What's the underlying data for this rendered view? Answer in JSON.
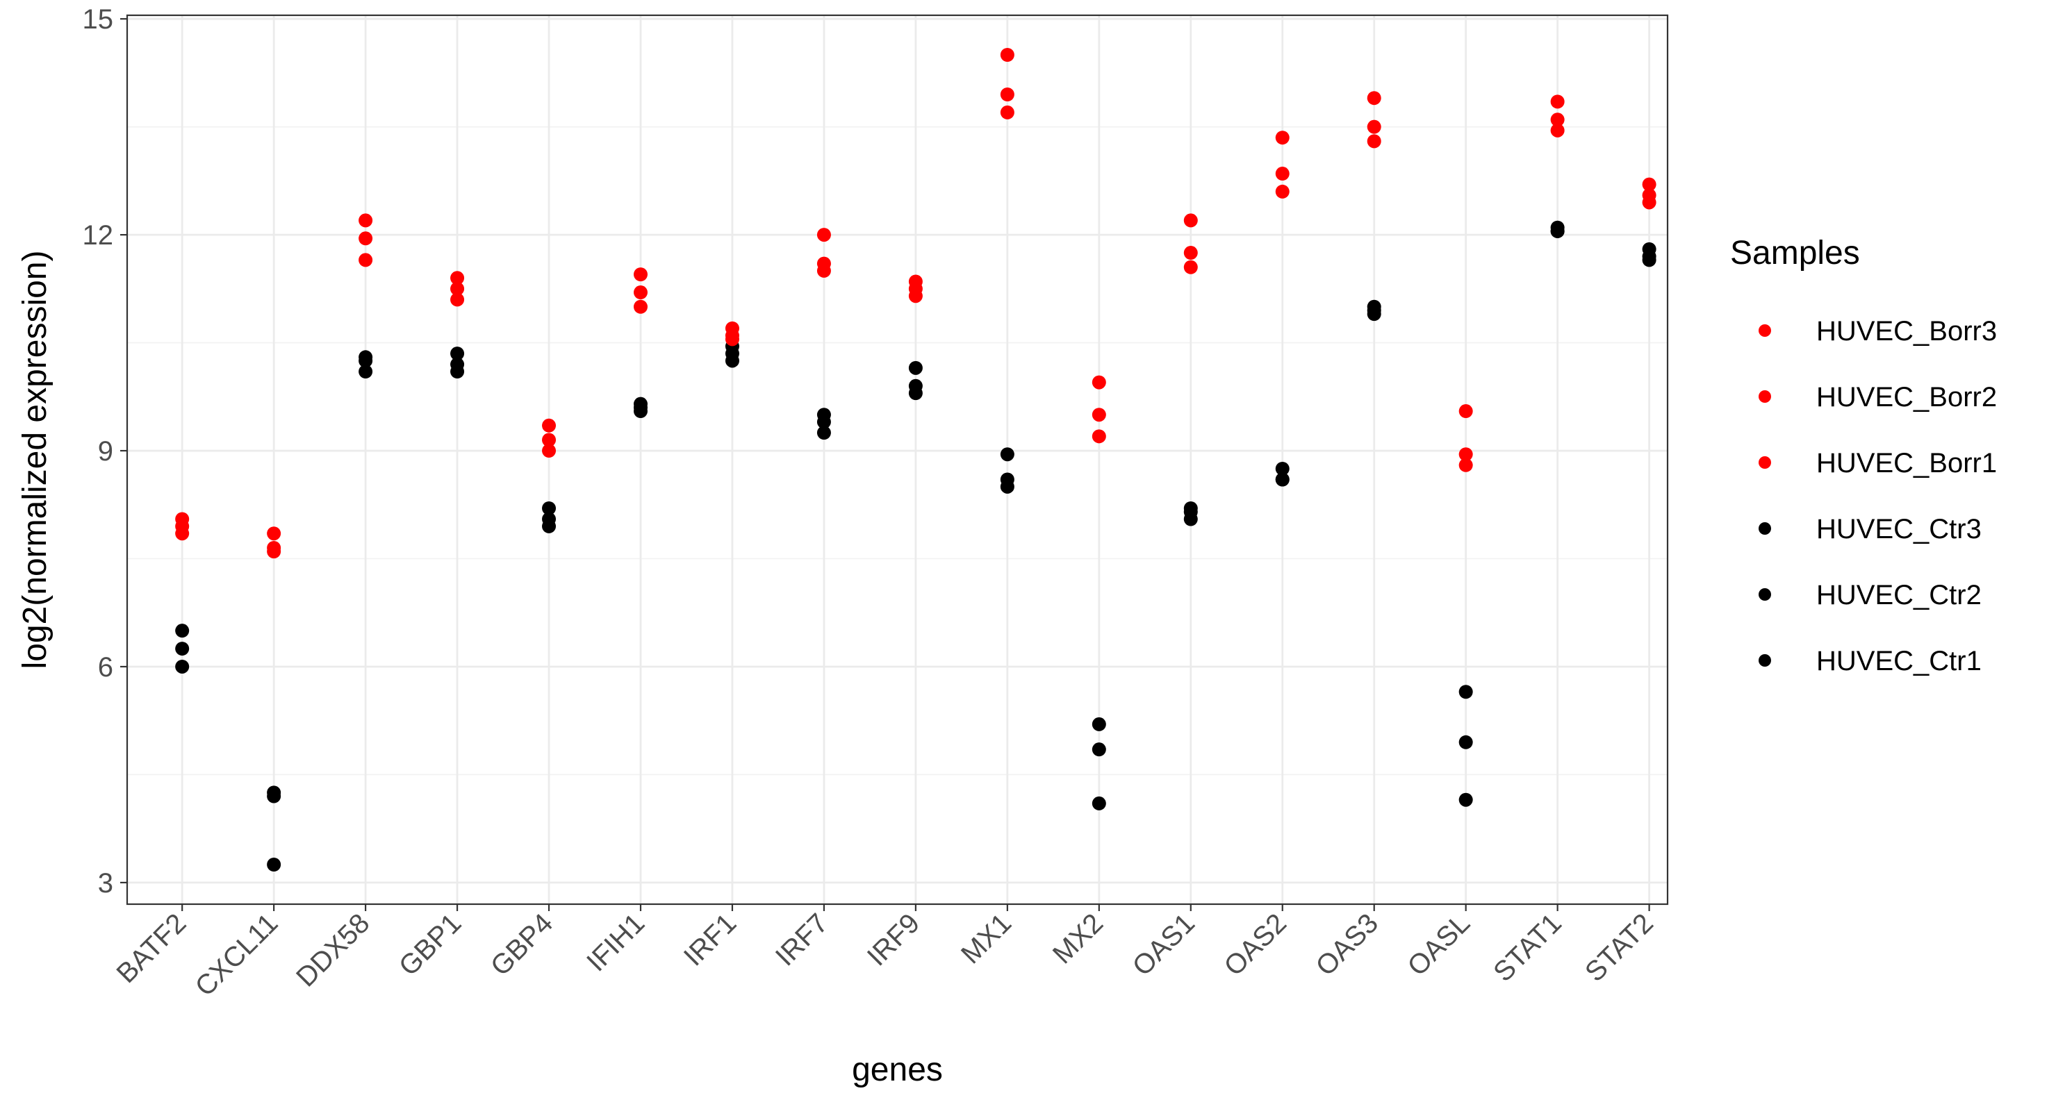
{
  "chart_data": {
    "type": "scatter",
    "title": "",
    "xlabel": "genes",
    "ylabel": "log2(normalized expression)",
    "ylim": [
      2.7,
      15.05
    ],
    "yticks": [
      3,
      6,
      9,
      12,
      15
    ],
    "grid": true,
    "categories": [
      "BATF2",
      "CXCL11",
      "DDX58",
      "GBP1",
      "GBP4",
      "IFIH1",
      "IRF1",
      "IRF7",
      "IRF9",
      "MX1",
      "MX2",
      "OAS1",
      "OAS2",
      "OAS3",
      "OASL",
      "STAT1",
      "STAT2"
    ],
    "legend": {
      "title": "Samples",
      "position": "right"
    },
    "series": [
      {
        "name": "HUVEC_Borr3",
        "color": "#ff0000",
        "values": [
          8.05,
          7.85,
          12.2,
          11.4,
          9.35,
          11.45,
          10.7,
          12.0,
          11.35,
          14.5,
          9.95,
          12.2,
          13.35,
          13.9,
          9.55,
          13.85,
          12.7
        ]
      },
      {
        "name": "HUVEC_Borr2",
        "color": "#ff0000",
        "values": [
          7.95,
          7.65,
          11.95,
          11.25,
          9.15,
          11.2,
          10.6,
          11.6,
          11.25,
          13.95,
          9.5,
          11.75,
          12.85,
          13.5,
          8.95,
          13.6,
          12.55
        ]
      },
      {
        "name": "HUVEC_Borr1",
        "color": "#ff0000",
        "values": [
          7.85,
          7.6,
          11.65,
          11.1,
          9.0,
          11.0,
          10.55,
          11.5,
          11.15,
          13.7,
          9.2,
          11.55,
          12.6,
          13.3,
          8.8,
          13.45,
          12.45
        ]
      },
      {
        "name": "HUVEC_Ctr3",
        "color": "#000000",
        "values": [
          6.5,
          4.25,
          10.3,
          10.35,
          8.2,
          9.65,
          10.45,
          9.5,
          10.15,
          8.95,
          5.2,
          8.2,
          8.75,
          11.0,
          5.65,
          12.1,
          11.8
        ]
      },
      {
        "name": "HUVEC_Ctr2",
        "color": "#000000",
        "values": [
          6.25,
          4.2,
          10.25,
          10.2,
          8.05,
          9.6,
          10.35,
          9.4,
          9.9,
          8.6,
          4.85,
          8.15,
          8.6,
          10.95,
          4.95,
          12.05,
          11.7
        ]
      },
      {
        "name": "HUVEC_Ctr1",
        "color": "#000000",
        "values": [
          6.0,
          3.25,
          10.1,
          10.1,
          7.95,
          9.55,
          10.25,
          9.25,
          9.8,
          8.5,
          4.1,
          8.05,
          8.6,
          10.9,
          4.15,
          12.05,
          11.65
        ]
      }
    ]
  }
}
